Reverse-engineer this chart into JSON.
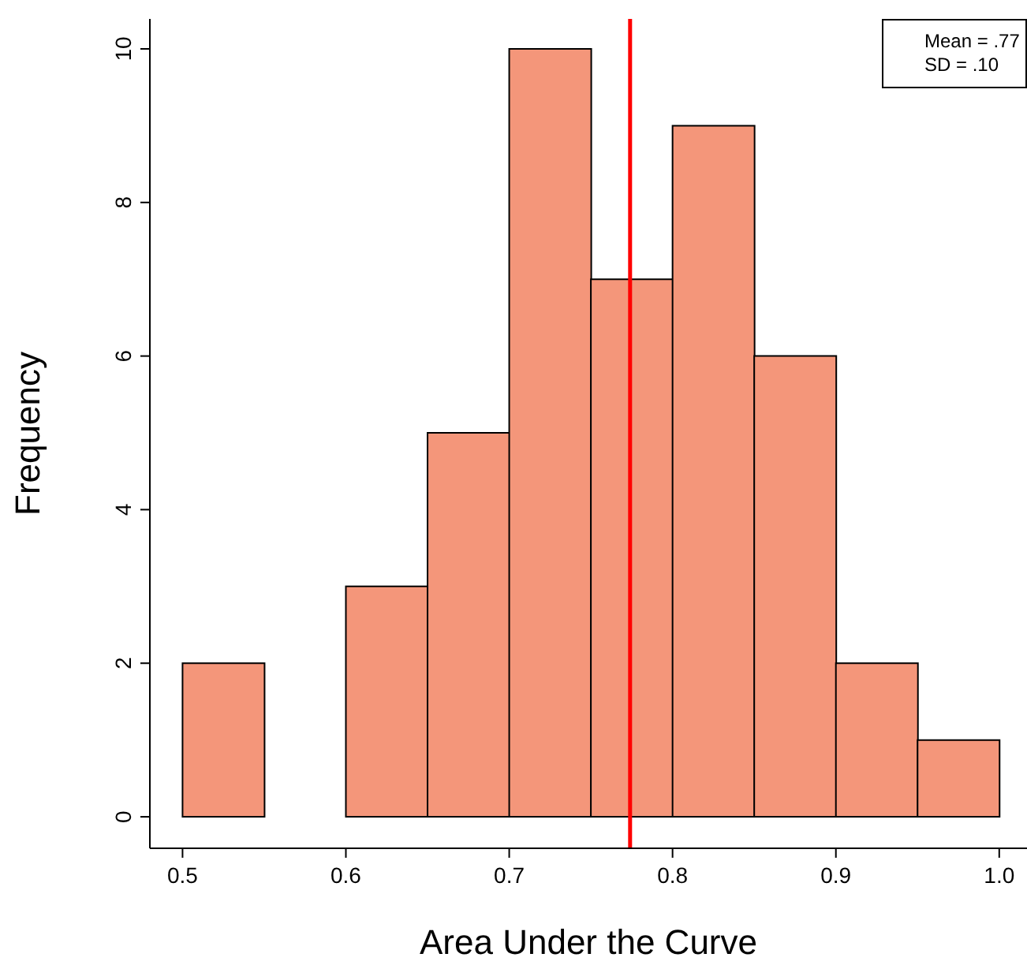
{
  "chart_data": {
    "type": "histogram",
    "xlabel": "Area Under the Curve",
    "ylabel": "Frequency",
    "bins": [
      0.5,
      0.55,
      0.6,
      0.65,
      0.7,
      0.75,
      0.8,
      0.85,
      0.9,
      0.95,
      1.0
    ],
    "values": [
      2,
      0,
      3,
      5,
      10,
      7,
      9,
      6,
      2,
      1
    ],
    "color": "#f4967a",
    "xlim": [
      0.48,
      1.017
    ],
    "xticks": [
      0.5,
      0.6,
      0.7,
      0.8,
      0.9,
      {
        "value": 1.0,
        "label": "1.0"
      }
    ],
    "ylim": [
      -0.41,
      10.39
    ],
    "yticks": [
      0,
      2,
      4,
      6,
      8,
      10
    ],
    "ref_lines": [
      {
        "axis": "x",
        "value": 0.774,
        "color": "#ff0000"
      }
    ],
    "annotations": [
      "Mean = .77",
      "SD = .10"
    ],
    "grid": false
  }
}
